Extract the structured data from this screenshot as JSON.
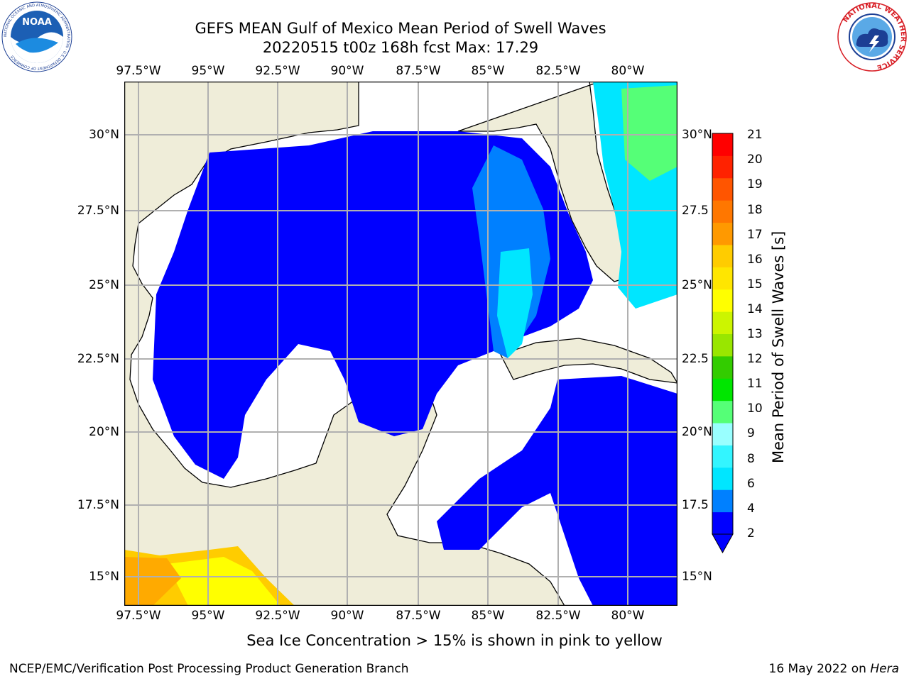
{
  "title": {
    "line1": "GEFS MEAN Gulf of Mexico Mean Period of Swell Waves",
    "line2": "20220515 t00z 168h fcst   Max: 17.29"
  },
  "logos": {
    "noaa_text": "NOAA",
    "noaa_ring": "NATIONAL OCEANIC AND ATMOSPHERIC ADMINISTRATION · U.S. DEPARTMENT OF COMMERCE",
    "nws_ring": "NATIONAL WEATHER SERVICE"
  },
  "map": {
    "lon_labels": [
      "97.5°W",
      "95°W",
      "92.5°W",
      "90°W",
      "87.5°W",
      "85°W",
      "82.5°W",
      "80°W"
    ],
    "lat_labels_left": [
      "30°N",
      "27.5°N",
      "25°N",
      "22.5°N",
      "20°N",
      "17.5°N",
      "15°N"
    ],
    "lat_labels_right": [
      "30°N",
      "27.5",
      "25°N",
      "22.5",
      "20°N",
      "17.5",
      "15°N"
    ],
    "colors": {
      "land": "#efedd9",
      "ocean_low": "#0000ff",
      "grid": "#b0b0b0"
    }
  },
  "colorbar": {
    "label": "Mean Period of Swell Waves [s]",
    "ticks": [
      "21",
      "20",
      "19",
      "18",
      "17",
      "16",
      "15",
      "14",
      "13",
      "12",
      "11",
      "10",
      "9",
      "8",
      "6",
      "4",
      "2"
    ],
    "colors": [
      "#0000ff",
      "#0080ff",
      "#00e6ff",
      "#33f5ff",
      "#99ffff",
      "#55ff77",
      "#00e600",
      "#33cc00",
      "#99e600",
      "#ccf500",
      "#ffff00",
      "#ffe600",
      "#ffcc00",
      "#ff9900",
      "#ff7700",
      "#ff5500",
      "#ff2200",
      "#ff0000"
    ]
  },
  "note": "Sea Ice Concentration > 15% is shown in pink to yellow",
  "footer": {
    "left": "NCEP/EMC/Verification Post Processing Product Generation Branch",
    "right_date": "16 May 2022 on ",
    "right_host": "Hera"
  }
}
